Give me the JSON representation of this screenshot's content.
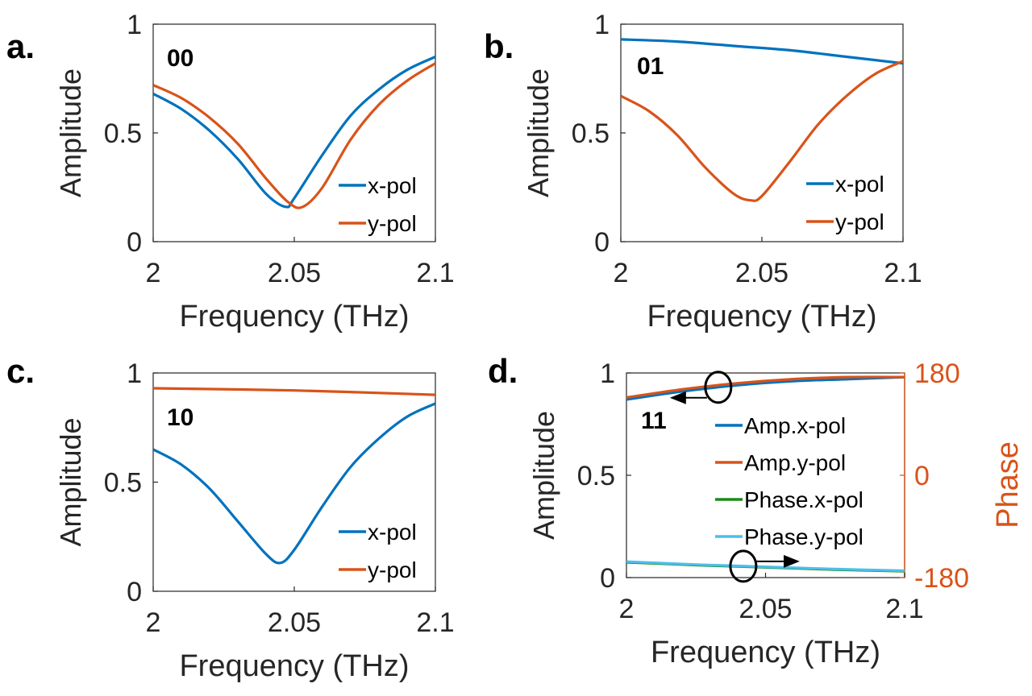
{
  "colors": {
    "x_pol": "#0072BD",
    "y_pol": "#D95319",
    "phase_x_pol": "#1B8A1B",
    "phase_y_pol": "#4DBEEE",
    "axis": "#262626",
    "phase_axis": "#D95319"
  },
  "chart_data": [
    {
      "type": "line",
      "panel_letter": "a.",
      "code_label": "00",
      "xlabel": "Frequency (THz)",
      "ylabel": "Amplitude",
      "xlim": [
        2,
        2.1
      ],
      "ylim": [
        0,
        1
      ],
      "xticks": [
        "2",
        "2.05",
        "2.1"
      ],
      "yticks": [
        "0",
        "0.5",
        "1"
      ],
      "legend_location": "bottom-right",
      "series": [
        {
          "name": "x-pol",
          "color": "x_pol",
          "x": [
            2.0,
            2.01,
            2.02,
            2.03,
            2.04,
            2.047,
            2.05,
            2.06,
            2.07,
            2.08,
            2.09,
            2.1
          ],
          "y": [
            0.68,
            0.61,
            0.51,
            0.38,
            0.22,
            0.16,
            0.2,
            0.4,
            0.58,
            0.7,
            0.79,
            0.85
          ]
        },
        {
          "name": "y-pol",
          "color": "y_pol",
          "x": [
            2.0,
            2.01,
            2.02,
            2.03,
            2.04,
            2.048,
            2.053,
            2.06,
            2.07,
            2.08,
            2.09,
            2.1
          ],
          "y": [
            0.72,
            0.66,
            0.57,
            0.45,
            0.29,
            0.18,
            0.16,
            0.25,
            0.47,
            0.63,
            0.74,
            0.82
          ]
        }
      ]
    },
    {
      "type": "line",
      "panel_letter": "b.",
      "code_label": "01",
      "xlabel": "Frequency (THz)",
      "ylabel": "Amplitude",
      "xlim": [
        2,
        2.1
      ],
      "ylim": [
        0,
        1
      ],
      "xticks": [
        "2",
        "2.05",
        "2.1"
      ],
      "yticks": [
        "0",
        "0.5",
        "1"
      ],
      "legend_location": "bottom-right",
      "series": [
        {
          "name": "x-pol",
          "color": "x_pol",
          "x": [
            2.0,
            2.02,
            2.04,
            2.06,
            2.08,
            2.1
          ],
          "y": [
            0.93,
            0.92,
            0.9,
            0.88,
            0.85,
            0.82
          ]
        },
        {
          "name": "y-pol",
          "color": "y_pol",
          "x": [
            2.0,
            2.01,
            2.02,
            2.03,
            2.04,
            2.046,
            2.05,
            2.06,
            2.07,
            2.08,
            2.09,
            2.1
          ],
          "y": [
            0.67,
            0.6,
            0.49,
            0.34,
            0.22,
            0.19,
            0.21,
            0.37,
            0.54,
            0.67,
            0.77,
            0.83
          ]
        }
      ]
    },
    {
      "type": "line",
      "panel_letter": "c.",
      "code_label": "10",
      "xlabel": "Frequency (THz)",
      "ylabel": "Amplitude",
      "xlim": [
        2,
        2.1
      ],
      "ylim": [
        0,
        1
      ],
      "xticks": [
        "2",
        "2.05",
        "2.1"
      ],
      "yticks": [
        "0",
        "0.5",
        "1"
      ],
      "legend_location": "bottom-right",
      "series": [
        {
          "name": "x-pol",
          "color": "x_pol",
          "x": [
            2.0,
            2.01,
            2.02,
            2.03,
            2.04,
            2.045,
            2.05,
            2.06,
            2.07,
            2.08,
            2.09,
            2.1
          ],
          "y": [
            0.65,
            0.58,
            0.47,
            0.32,
            0.17,
            0.13,
            0.19,
            0.39,
            0.57,
            0.7,
            0.8,
            0.86
          ]
        },
        {
          "name": "y-pol",
          "color": "y_pol",
          "x": [
            2.0,
            2.05,
            2.1
          ],
          "y": [
            0.93,
            0.92,
            0.9
          ]
        }
      ]
    },
    {
      "type": "line",
      "panel_letter": "d.",
      "code_label": "11",
      "xlabel": "Frequency (THz)",
      "ylabel": "Amplitude",
      "y2label": "Phase",
      "xlim": [
        2,
        2.1
      ],
      "ylim": [
        0,
        1
      ],
      "y2lim": [
        -180,
        180
      ],
      "xticks": [
        "2",
        "2.05",
        "2.1"
      ],
      "yticks": [
        "0",
        "0.5",
        "1"
      ],
      "y2ticks": [
        "-180",
        "0",
        "180"
      ],
      "legend_location": "center-right",
      "annotations": [
        {
          "text": "",
          "meaning": "circle with arrow pointing to left axis (amplitude curves)"
        },
        {
          "text": "",
          "meaning": "circle with arrow pointing to right axis (phase curves)"
        }
      ],
      "series": [
        {
          "name": "Amp.x-pol",
          "color": "x_pol",
          "axis": "left",
          "x": [
            2.0,
            2.02,
            2.04,
            2.06,
            2.08,
            2.1
          ],
          "y": [
            0.87,
            0.91,
            0.94,
            0.96,
            0.97,
            0.98
          ]
        },
        {
          "name": "Amp.y-pol",
          "color": "y_pol",
          "axis": "left",
          "x": [
            2.0,
            2.02,
            2.04,
            2.06,
            2.08,
            2.1
          ],
          "y": [
            0.88,
            0.92,
            0.95,
            0.97,
            0.98,
            0.98
          ]
        },
        {
          "name": "Phase.x-pol",
          "color": "phase_x_pol",
          "axis": "right",
          "x": [
            2.0,
            2.025,
            2.05,
            2.075,
            2.1
          ],
          "y": [
            -153,
            -158,
            -162,
            -166,
            -169
          ]
        },
        {
          "name": "Phase.y-pol",
          "color": "phase_y_pol",
          "axis": "right",
          "x": [
            2.0,
            2.025,
            2.05,
            2.075,
            2.1
          ],
          "y": [
            -152,
            -157,
            -161,
            -165,
            -168
          ]
        }
      ]
    }
  ]
}
